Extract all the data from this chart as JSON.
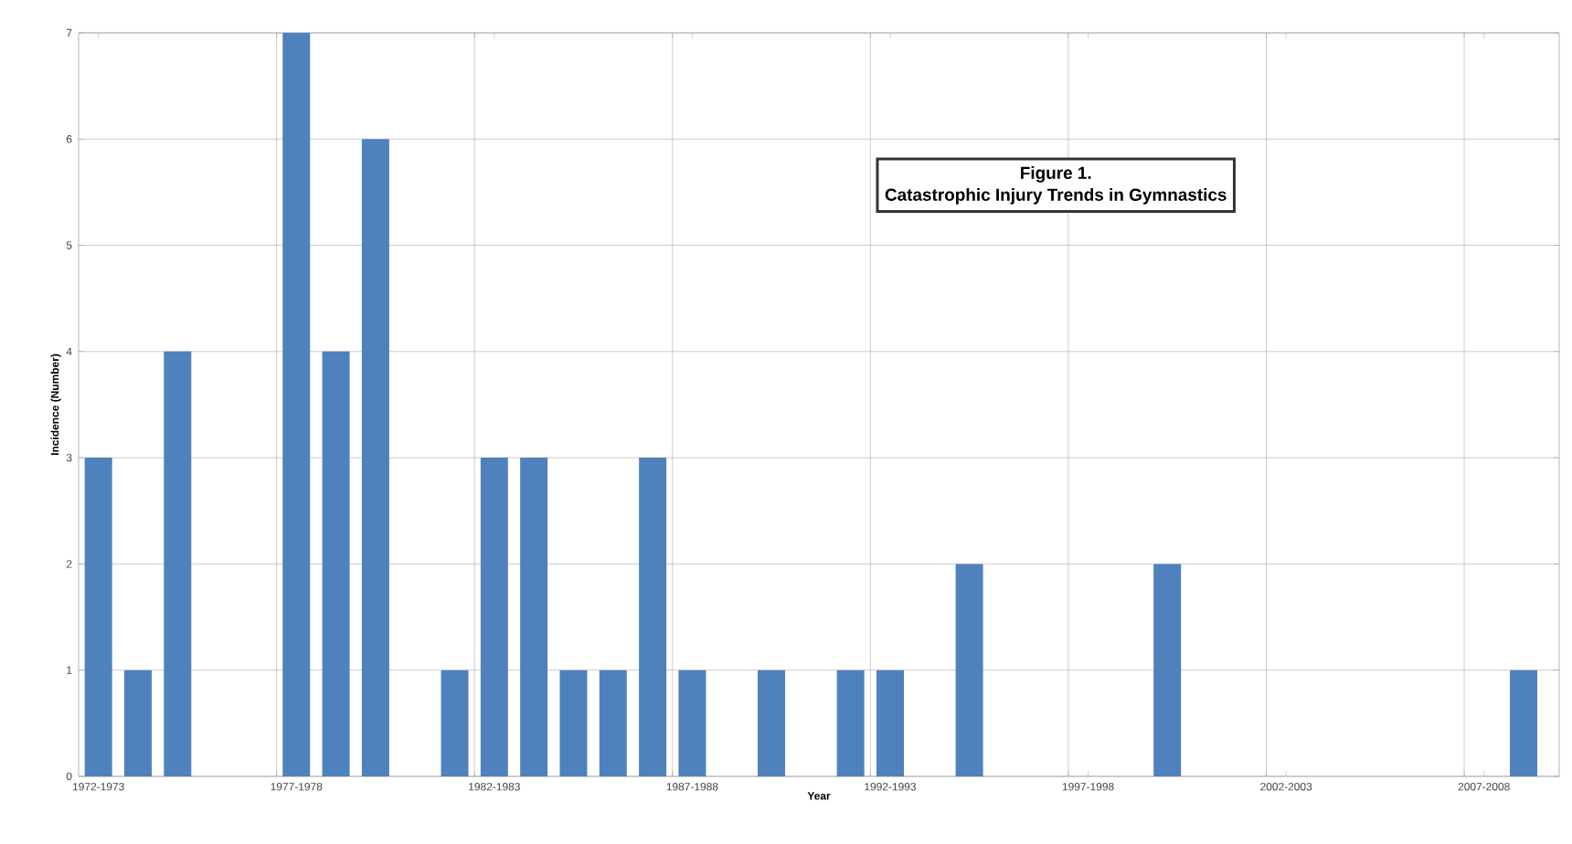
{
  "chart_data": {
    "type": "bar",
    "title": "Figure 1.",
    "subtitle": "Catastrophic Injury Trends in Gymnastics",
    "xlabel": "Year",
    "ylabel": "Incidence (Number)",
    "categories": [
      "1972-1973",
      null,
      null,
      null,
      null,
      "1977-1978",
      null,
      null,
      null,
      null,
      "1982-1983",
      null,
      null,
      null,
      null,
      "1987-1988",
      null,
      null,
      null,
      null,
      "1992-1993",
      null,
      null,
      null,
      null,
      "1997-1998",
      null,
      null,
      null,
      null,
      "2002-2003",
      null,
      null,
      null,
      null,
      "2007-2008",
      null
    ],
    "values": [
      3,
      1,
      4,
      0,
      0,
      7,
      4,
      6,
      0,
      1,
      3,
      3,
      1,
      1,
      3,
      1,
      0,
      1,
      0,
      1,
      1,
      0,
      2,
      0,
      0,
      0,
      0,
      2,
      0,
      0,
      0,
      0,
      0,
      0,
      0,
      0,
      1
    ],
    "color": "#4f81bd",
    "ylim": [
      0,
      7
    ],
    "yticks": [
      0,
      1,
      2,
      3,
      4,
      5,
      6,
      7
    ],
    "grid": true
  }
}
